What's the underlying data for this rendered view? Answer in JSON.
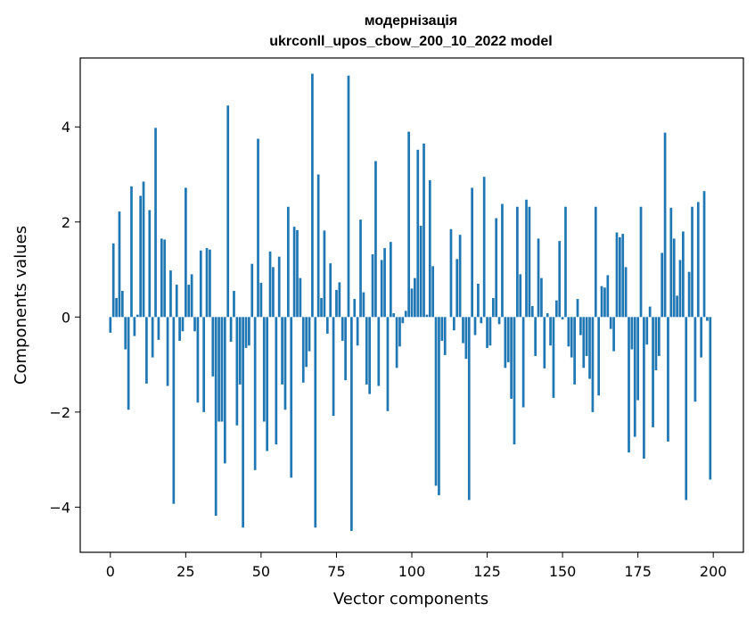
{
  "chart_data": {
    "type": "bar",
    "title": "модернізація",
    "subtitle": "ukrconll_upos_cbow_200_10_2022 model",
    "xlabel": "Vector components",
    "ylabel": "Components values",
    "xlim": [
      -10,
      210
    ],
    "ylim": [
      -4.95,
      5.45
    ],
    "xticks": [
      0,
      25,
      50,
      75,
      100,
      125,
      150,
      175,
      200
    ],
    "yticks": [
      -4,
      -2,
      0,
      2,
      4
    ],
    "bar_color": "#1f77b4",
    "x": [
      0,
      1,
      2,
      3,
      4,
      5,
      6,
      7,
      8,
      9,
      10,
      11,
      12,
      13,
      14,
      15,
      16,
      17,
      18,
      19,
      20,
      21,
      22,
      23,
      24,
      25,
      26,
      27,
      28,
      29,
      30,
      31,
      32,
      33,
      34,
      35,
      36,
      37,
      38,
      39,
      40,
      41,
      42,
      43,
      44,
      45,
      46,
      47,
      48,
      49,
      50,
      51,
      52,
      53,
      54,
      55,
      56,
      57,
      58,
      59,
      60,
      61,
      62,
      63,
      64,
      65,
      66,
      67,
      68,
      69,
      70,
      71,
      72,
      73,
      74,
      75,
      76,
      77,
      78,
      79,
      80,
      81,
      82,
      83,
      84,
      85,
      86,
      87,
      88,
      89,
      90,
      91,
      92,
      93,
      94,
      95,
      96,
      97,
      98,
      99,
      100,
      101,
      102,
      103,
      104,
      105,
      106,
      107,
      108,
      109,
      110,
      111,
      112,
      113,
      114,
      115,
      116,
      117,
      118,
      119,
      120,
      121,
      122,
      123,
      124,
      125,
      126,
      127,
      128,
      129,
      130,
      131,
      132,
      133,
      134,
      135,
      136,
      137,
      138,
      139,
      140,
      141,
      142,
      143,
      144,
      145,
      146,
      147,
      148,
      149,
      150,
      151,
      152,
      153,
      154,
      155,
      156,
      157,
      158,
      159,
      160,
      161,
      162,
      163,
      164,
      165,
      166,
      167,
      168,
      169,
      170,
      171,
      172,
      173,
      174,
      175,
      176,
      177,
      178,
      179,
      180,
      181,
      182,
      183,
      184,
      185,
      186,
      187,
      188,
      189,
      190,
      191,
      192,
      193,
      194,
      195,
      196,
      197,
      198,
      199
    ],
    "values": [
      -0.33,
      1.55,
      0.4,
      2.22,
      0.55,
      -0.68,
      -1.95,
      2.75,
      -0.4,
      0.05,
      2.55,
      2.85,
      -1.4,
      2.25,
      -0.85,
      3.98,
      -0.48,
      1.65,
      1.63,
      -1.45,
      0.98,
      -3.93,
      0.68,
      -0.5,
      -0.3,
      2.72,
      0.68,
      0.9,
      -0.3,
      -1.8,
      1.4,
      -2.0,
      1.45,
      1.42,
      -1.25,
      -4.18,
      -2.2,
      -2.2,
      -3.08,
      4.45,
      -0.52,
      0.55,
      -2.28,
      -1.42,
      -4.43,
      -0.65,
      -0.6,
      1.12,
      -3.22,
      3.75,
      0.72,
      -2.2,
      -2.82,
      1.38,
      1.05,
      -2.68,
      1.27,
      -1.42,
      -1.95,
      2.32,
      -3.38,
      1.9,
      1.83,
      0.82,
      -1.38,
      -1.05,
      -0.72,
      5.12,
      -4.43,
      3.0,
      0.4,
      1.82,
      -0.35,
      1.13,
      -2.08,
      0.57,
      0.73,
      -0.5,
      -1.33,
      5.08,
      -4.5,
      0.38,
      -0.6,
      2.05,
      0.52,
      -1.42,
      -1.62,
      1.32,
      3.28,
      -1.45,
      1.2,
      1.45,
      -1.98,
      1.58,
      0.08,
      -1.07,
      -0.62,
      -0.13,
      0.13,
      3.9,
      0.6,
      0.82,
      3.52,
      1.92,
      3.65,
      0.05,
      2.88,
      1.07,
      -3.55,
      -3.75,
      -0.5,
      -0.8,
      0.0,
      1.85,
      -0.28,
      1.22,
      1.73,
      -0.55,
      -0.88,
      -3.85,
      2.72,
      -0.38,
      0.7,
      -0.13,
      2.95,
      -0.65,
      -0.6,
      0.4,
      2.08,
      -0.15,
      2.38,
      -1.07,
      -0.95,
      -1.72,
      -2.68,
      2.32,
      0.9,
      -1.9,
      2.47,
      2.32,
      0.23,
      -0.82,
      1.65,
      0.82,
      -1.08,
      0.08,
      -0.6,
      -1.7,
      0.35,
      1.6,
      -0.05,
      2.32,
      -0.62,
      -0.85,
      -1.42,
      0.38,
      -0.38,
      -1.07,
      -0.82,
      -1.3,
      -2.0,
      2.32,
      -1.65,
      0.65,
      0.62,
      0.88,
      -0.25,
      -0.72,
      1.78,
      1.68,
      1.75,
      1.05,
      -2.85,
      -0.68,
      -2.52,
      -1.75,
      2.32,
      -2.98,
      -0.58,
      0.22,
      -2.32,
      -1.12,
      -0.82,
      1.35,
      3.88,
      -2.62,
      2.3,
      1.65,
      0.45,
      1.2,
      1.8,
      -3.85,
      0.95,
      2.32,
      -1.78,
      2.42,
      -0.85,
      2.65,
      -0.08,
      -3.42
    ]
  }
}
